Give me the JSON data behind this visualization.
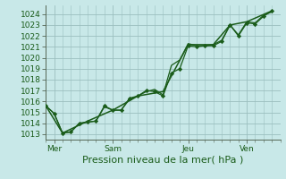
{
  "xlabel": "Pression niveau de la mer( hPa )",
  "bg_color": "#c8e8e8",
  "plot_bg_color": "#c8e8e8",
  "grid_color": "#9bbfbf",
  "line_color": "#1a5c1a",
  "ylim": [
    1012.5,
    1024.8
  ],
  "yticks": [
    1013,
    1014,
    1015,
    1016,
    1017,
    1018,
    1019,
    1020,
    1021,
    1022,
    1023,
    1024
  ],
  "xlim": [
    0,
    28
  ],
  "xtick_major": [
    1,
    8,
    17,
    24
  ],
  "xtick_labels": [
    "Mer",
    "Sam",
    "Jeu",
    "Ven"
  ],
  "minor_xtick_interval": 1,
  "line1_x": [
    0,
    1,
    2,
    3,
    4,
    5,
    6,
    7,
    8,
    9,
    10,
    11,
    12,
    13,
    14,
    15,
    16,
    17,
    18,
    19,
    20,
    21,
    22,
    23,
    24,
    25,
    26,
    27
  ],
  "line1_y": [
    1015.6,
    1014.9,
    1013.1,
    1013.2,
    1014.0,
    1014.1,
    1014.2,
    1015.6,
    1015.2,
    1015.2,
    1016.3,
    1016.5,
    1017.0,
    1016.9,
    1016.5,
    1018.6,
    1019.0,
    1021.1,
    1021.0,
    1021.1,
    1021.1,
    1021.5,
    1023.0,
    1022.0,
    1023.2,
    1023.1,
    1023.8,
    1024.3
  ],
  "line2_x": [
    0,
    1,
    2,
    3,
    4,
    5,
    6,
    7,
    8,
    9,
    10,
    11,
    12,
    13,
    14,
    15,
    16,
    17,
    18,
    19,
    20,
    21,
    22,
    23,
    24,
    25,
    26,
    27
  ],
  "line2_y": [
    1015.6,
    1014.9,
    1013.1,
    1013.2,
    1014.0,
    1014.1,
    1014.2,
    1015.5,
    1015.2,
    1015.2,
    1016.2,
    1016.5,
    1016.9,
    1017.1,
    1016.6,
    1019.3,
    1019.8,
    1021.3,
    1021.1,
    1021.1,
    1021.2,
    1021.6,
    1023.0,
    1022.1,
    1023.3,
    1023.2,
    1023.9,
    1024.2
  ],
  "line3_x": [
    0,
    2,
    5,
    8,
    11,
    14,
    17,
    20,
    22,
    24,
    27
  ],
  "line3_y": [
    1015.6,
    1013.1,
    1014.2,
    1015.2,
    1016.5,
    1016.9,
    1021.2,
    1021.2,
    1023.0,
    1023.3,
    1024.3
  ],
  "xlabel_fontsize": 8,
  "tick_fontsize": 6.5
}
